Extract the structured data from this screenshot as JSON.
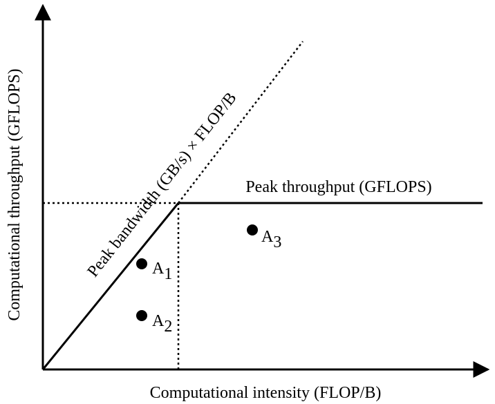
{
  "axes": {
    "x_label": "Computational intensity (FLOP/B)",
    "y_label": "Computational throughput (GFLOPS)"
  },
  "roof": {
    "bandwidth_label": "Peak bandwidth (GB/s) × FLOP/B",
    "throughput_label": "Peak throughput (GFLOPS)"
  },
  "points": [
    {
      "letter": "A",
      "subscript": "1"
    },
    {
      "letter": "A",
      "subscript": "2"
    },
    {
      "letter": "A",
      "subscript": "3"
    }
  ]
}
